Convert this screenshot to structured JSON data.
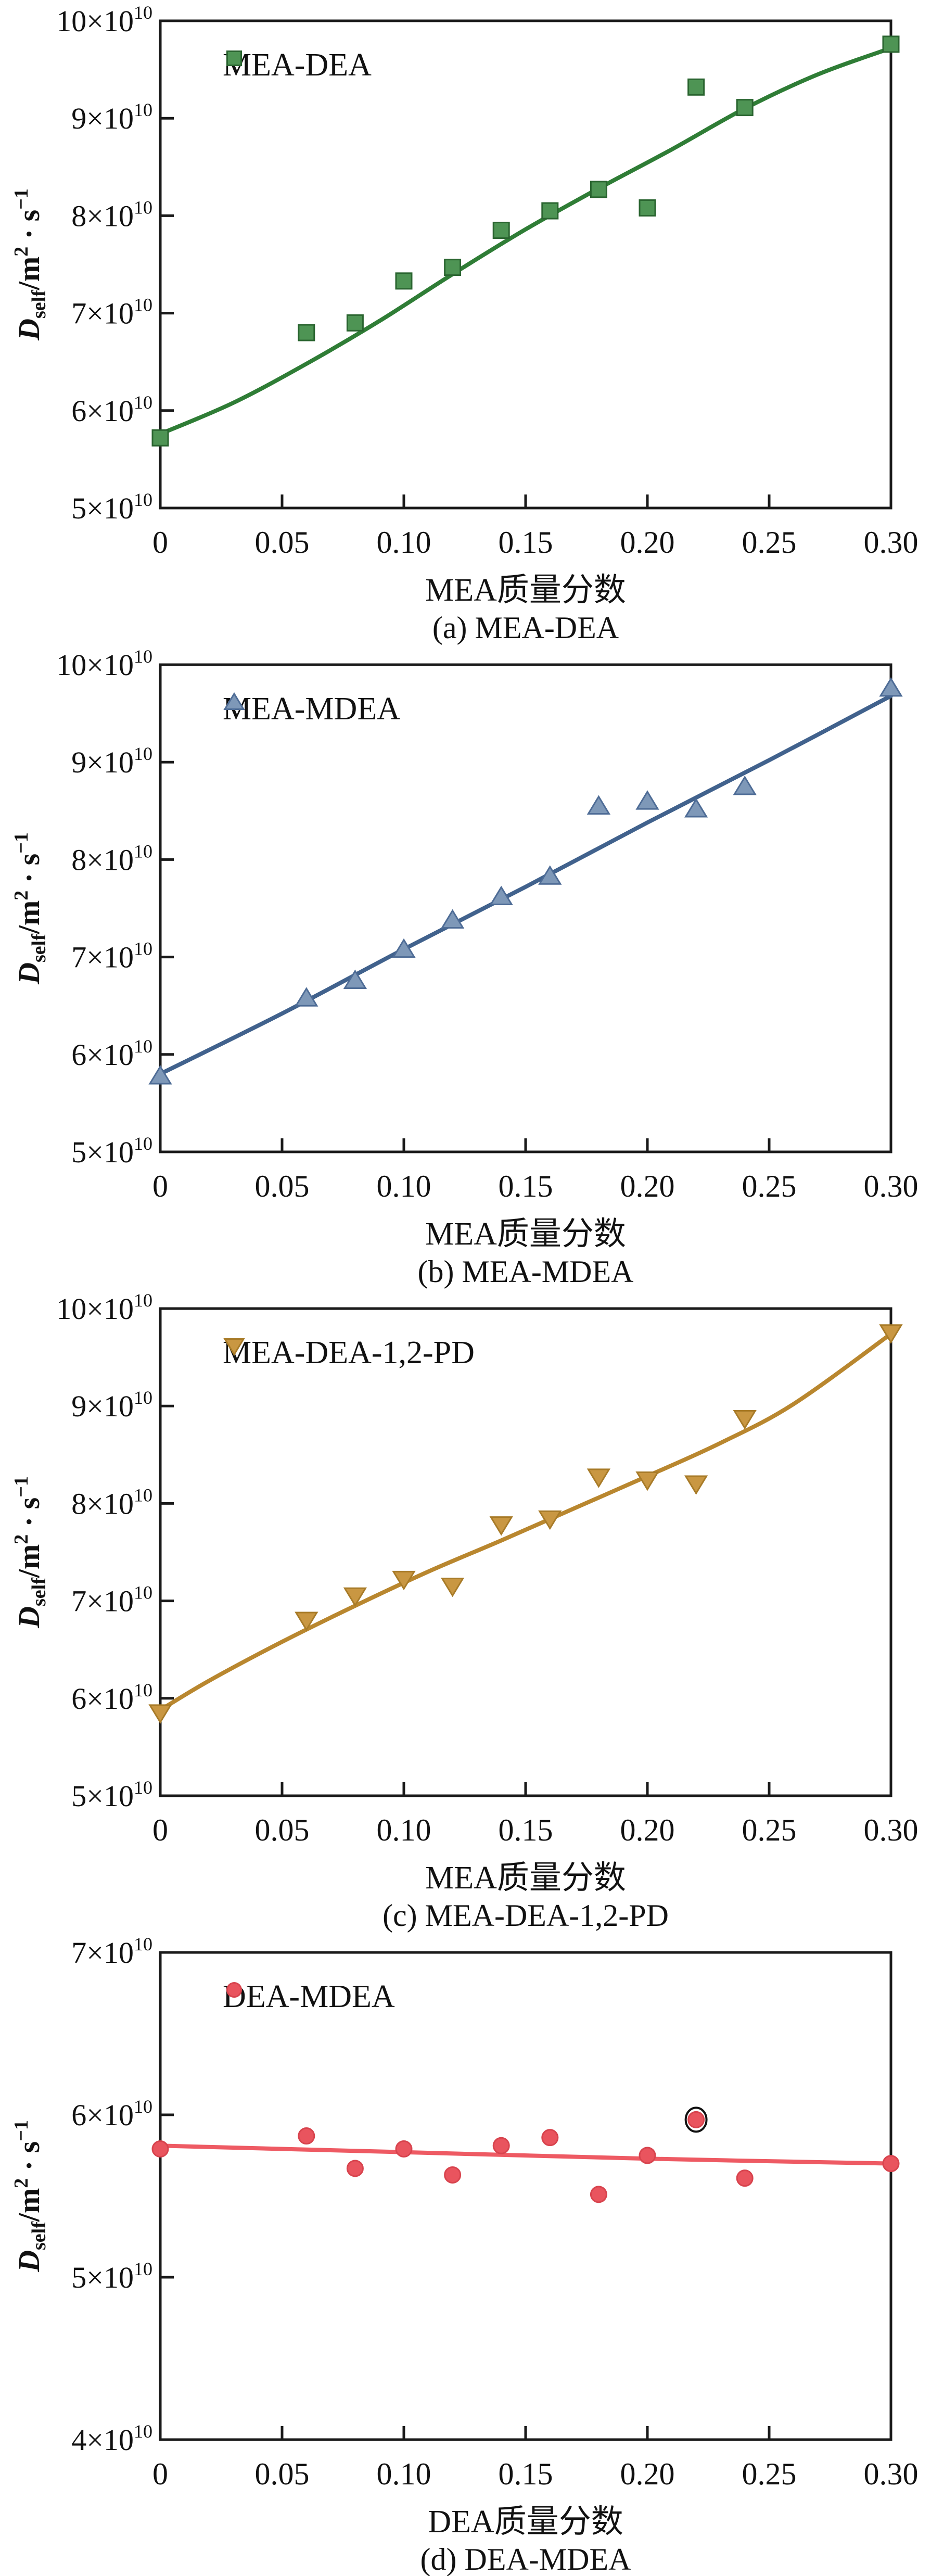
{
  "page": {
    "background": "#ffffff",
    "axis_color": "#1a1a1a",
    "text_color": "#111111"
  },
  "ylabel": {
    "d": "D",
    "sub": "self",
    "slash_m": "/m",
    "exp_m": "2",
    "dot_s": " · s",
    "exp_s": "−1"
  },
  "chart_data": [
    {
      "id": "a",
      "type": "scatter",
      "legend_label": "MEA-DEA",
      "marker_shape": "square",
      "marker_fill": "#4E9454",
      "marker_stroke": "#2A6530",
      "line_color": "#2F7D36",
      "xlabel": "MEA质量分数",
      "caption": "(a) MEA-DEA",
      "exponent": "10",
      "xlim": [
        0,
        0.3
      ],
      "ylim": [
        5,
        10
      ],
      "x_tick_values": [
        0,
        0.05,
        0.1,
        0.15,
        0.2,
        0.25,
        0.3
      ],
      "x_tick_labels": [
        "0",
        "0.05",
        "0.10",
        "0.15",
        "0.20",
        "0.25",
        "0.30"
      ],
      "y_tick_values": [
        10,
        9,
        8,
        7,
        6,
        5
      ],
      "y_tick_labels": [
        "10",
        "9",
        "8",
        "7",
        "6",
        "5"
      ],
      "points": [
        {
          "x": 0.0,
          "y": 5.72
        },
        {
          "x": 0.06,
          "y": 6.8
        },
        {
          "x": 0.08,
          "y": 6.9
        },
        {
          "x": 0.1,
          "y": 7.33
        },
        {
          "x": 0.12,
          "y": 7.47
        },
        {
          "x": 0.14,
          "y": 7.85
        },
        {
          "x": 0.16,
          "y": 8.05
        },
        {
          "x": 0.18,
          "y": 8.27
        },
        {
          "x": 0.2,
          "y": 8.08
        },
        {
          "x": 0.22,
          "y": 9.32
        },
        {
          "x": 0.24,
          "y": 9.11
        },
        {
          "x": 0.3,
          "y": 9.76
        }
      ],
      "trend": [
        {
          "x": 0.0,
          "y": 5.76
        },
        {
          "x": 0.03,
          "y": 6.08
        },
        {
          "x": 0.06,
          "y": 6.48
        },
        {
          "x": 0.09,
          "y": 6.92
        },
        {
          "x": 0.12,
          "y": 7.4
        },
        {
          "x": 0.15,
          "y": 7.86
        },
        {
          "x": 0.18,
          "y": 8.28
        },
        {
          "x": 0.21,
          "y": 8.68
        },
        {
          "x": 0.24,
          "y": 9.1
        },
        {
          "x": 0.27,
          "y": 9.45
        },
        {
          "x": 0.3,
          "y": 9.72
        }
      ]
    },
    {
      "id": "b",
      "type": "scatter",
      "legend_label": "MEA-MDEA",
      "marker_shape": "triangle-up",
      "marker_fill": "#7E98B8",
      "marker_stroke": "#4E6C96",
      "line_color": "#41628D",
      "xlabel": "MEA质量分数",
      "caption": "(b) MEA-MDEA",
      "exponent": "10",
      "xlim": [
        0,
        0.3
      ],
      "ylim": [
        5,
        10
      ],
      "x_tick_values": [
        0,
        0.05,
        0.1,
        0.15,
        0.2,
        0.25,
        0.3
      ],
      "x_tick_labels": [
        "0",
        "0.05",
        "0.10",
        "0.15",
        "0.20",
        "0.25",
        "0.30"
      ],
      "y_tick_values": [
        10,
        9,
        8,
        7,
        6,
        5
      ],
      "y_tick_labels": [
        "10",
        "9",
        "8",
        "7",
        "6",
        "5"
      ],
      "points": [
        {
          "x": 0.0,
          "y": 5.78
        },
        {
          "x": 0.06,
          "y": 6.58
        },
        {
          "x": 0.08,
          "y": 6.76
        },
        {
          "x": 0.1,
          "y": 7.08
        },
        {
          "x": 0.12,
          "y": 7.38
        },
        {
          "x": 0.14,
          "y": 7.62
        },
        {
          "x": 0.16,
          "y": 7.83
        },
        {
          "x": 0.18,
          "y": 8.55
        },
        {
          "x": 0.2,
          "y": 8.6
        },
        {
          "x": 0.22,
          "y": 8.52
        },
        {
          "x": 0.24,
          "y": 8.75
        },
        {
          "x": 0.3,
          "y": 9.76
        }
      ],
      "trend": [
        {
          "x": 0.0,
          "y": 5.8
        },
        {
          "x": 0.05,
          "y": 6.42
        },
        {
          "x": 0.1,
          "y": 7.08
        },
        {
          "x": 0.15,
          "y": 7.72
        },
        {
          "x": 0.2,
          "y": 8.38
        },
        {
          "x": 0.25,
          "y": 9.02
        },
        {
          "x": 0.3,
          "y": 9.68
        }
      ]
    },
    {
      "id": "c",
      "type": "scatter",
      "legend_label": "MEA-DEA-1,2-PD",
      "marker_shape": "triangle-down",
      "marker_fill": "#C99742",
      "marker_stroke": "#A87B28",
      "line_color": "#B9872F",
      "xlabel": "MEA质量分数",
      "caption": "(c) MEA-DEA-1,2-PD",
      "exponent": "10",
      "xlim": [
        0,
        0.3
      ],
      "ylim": [
        5,
        10
      ],
      "x_tick_values": [
        0,
        0.05,
        0.1,
        0.15,
        0.2,
        0.25,
        0.3
      ],
      "x_tick_labels": [
        "0",
        "0.05",
        "0.10",
        "0.15",
        "0.20",
        "0.25",
        "0.30"
      ],
      "y_tick_values": [
        10,
        9,
        8,
        7,
        6,
        5
      ],
      "y_tick_labels": [
        "10",
        "9",
        "8",
        "7",
        "6",
        "5"
      ],
      "points": [
        {
          "x": 0.0,
          "y": 5.85
        },
        {
          "x": 0.06,
          "y": 6.8
        },
        {
          "x": 0.08,
          "y": 7.05
        },
        {
          "x": 0.1,
          "y": 7.22
        },
        {
          "x": 0.12,
          "y": 7.15
        },
        {
          "x": 0.14,
          "y": 7.78
        },
        {
          "x": 0.16,
          "y": 7.84
        },
        {
          "x": 0.18,
          "y": 8.27
        },
        {
          "x": 0.2,
          "y": 8.24
        },
        {
          "x": 0.22,
          "y": 8.2
        },
        {
          "x": 0.24,
          "y": 8.87
        },
        {
          "x": 0.3,
          "y": 9.75
        }
      ],
      "trend": [
        {
          "x": 0.0,
          "y": 5.88
        },
        {
          "x": 0.02,
          "y": 6.18
        },
        {
          "x": 0.05,
          "y": 6.58
        },
        {
          "x": 0.08,
          "y": 6.95
        },
        {
          "x": 0.11,
          "y": 7.3
        },
        {
          "x": 0.14,
          "y": 7.62
        },
        {
          "x": 0.17,
          "y": 7.95
        },
        {
          "x": 0.2,
          "y": 8.28
        },
        {
          "x": 0.23,
          "y": 8.62
        },
        {
          "x": 0.26,
          "y": 9.02
        },
        {
          "x": 0.3,
          "y": 9.74
        }
      ]
    },
    {
      "id": "d",
      "type": "scatter",
      "legend_label": "DEA-MDEA",
      "marker_shape": "circle",
      "marker_fill": "#E9545E",
      "marker_stroke": "#D8444E",
      "line_color": "#EE5A63",
      "xlabel": "DEA质量分数",
      "caption": "(d) DEA-MDEA",
      "exponent": "10",
      "xlim": [
        0,
        0.3
      ],
      "ylim": [
        4,
        7
      ],
      "x_tick_values": [
        0,
        0.05,
        0.1,
        0.15,
        0.2,
        0.25,
        0.3
      ],
      "x_tick_labels": [
        "0",
        "0.05",
        "0.10",
        "0.15",
        "0.20",
        "0.25",
        "0.30"
      ],
      "y_tick_values": [
        7,
        6,
        5,
        4
      ],
      "y_tick_labels": [
        "7",
        "6",
        "5",
        "4"
      ],
      "points": [
        {
          "x": 0.0,
          "y": 5.79
        },
        {
          "x": 0.06,
          "y": 5.87
        },
        {
          "x": 0.08,
          "y": 5.67
        },
        {
          "x": 0.1,
          "y": 5.79
        },
        {
          "x": 0.12,
          "y": 5.63
        },
        {
          "x": 0.14,
          "y": 5.81
        },
        {
          "x": 0.16,
          "y": 5.86
        },
        {
          "x": 0.18,
          "y": 5.51
        },
        {
          "x": 0.2,
          "y": 5.75
        },
        {
          "x": 0.22,
          "y": 5.97,
          "highlight": true
        },
        {
          "x": 0.24,
          "y": 5.61
        },
        {
          "x": 0.3,
          "y": 5.7
        }
      ],
      "trend": [
        {
          "x": 0.0,
          "y": 5.81
        },
        {
          "x": 0.1,
          "y": 5.77
        },
        {
          "x": 0.2,
          "y": 5.73
        },
        {
          "x": 0.3,
          "y": 5.7
        }
      ]
    }
  ]
}
